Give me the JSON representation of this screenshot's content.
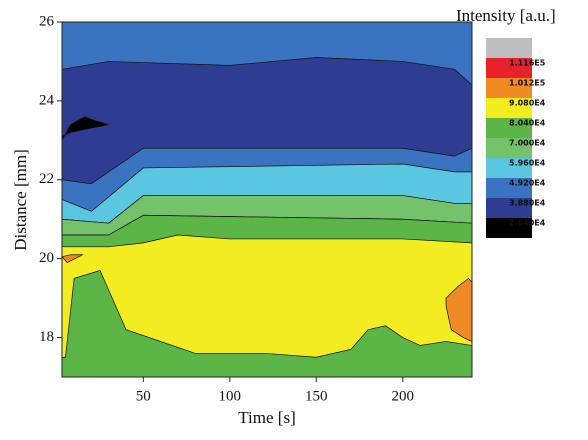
{
  "chart_data": {
    "type": "contour",
    "x_label": "Time [s]",
    "y_label": "Distance [mm]",
    "colorbar_title": "Intensity [a.u.]",
    "xlim": [
      3,
      240
    ],
    "ylim": [
      17,
      26
    ],
    "xticks": [
      50,
      100,
      150,
      200
    ],
    "yticks": [
      18,
      20,
      22,
      24,
      26
    ],
    "colorbar_top_color": "#bdbdbd",
    "levels": [
      {
        "value": 111600,
        "label": "1.116E5",
        "color": "#e8222a"
      },
      {
        "value": 101200,
        "label": "1.012E5",
        "color": "#f08a24"
      },
      {
        "value": 90800,
        "label": "9.080E4",
        "color": "#f3ec20"
      },
      {
        "value": 80400,
        "label": "8.040E4",
        "color": "#5cb547"
      },
      {
        "value": 70000,
        "label": "7.000E4",
        "color": "#74c26a"
      },
      {
        "value": 59600,
        "label": "5.960E4",
        "color": "#5bc6df"
      },
      {
        "value": 49200,
        "label": "4.920E4",
        "color": "#3a73c0"
      },
      {
        "value": 38800,
        "label": "3.880E4",
        "color": "#2e3d92"
      },
      {
        "value": 28400,
        "label": "2.840E4",
        "color": "#000000"
      }
    ],
    "regions": [
      {
        "level": 49200,
        "points": [
          [
            3,
            26
          ],
          [
            240,
            26
          ],
          [
            240,
            17
          ],
          [
            3,
            17
          ]
        ]
      },
      {
        "level": 38800,
        "points": [
          [
            3,
            24.8
          ],
          [
            30,
            25
          ],
          [
            100,
            24.9
          ],
          [
            150,
            25.1
          ],
          [
            200,
            25
          ],
          [
            230,
            24.8
          ],
          [
            240,
            24.4
          ],
          [
            240,
            22.8
          ],
          [
            230,
            22.6
          ],
          [
            200,
            22.8
          ],
          [
            150,
            22.8
          ],
          [
            50,
            22.8
          ],
          [
            20,
            21.9
          ],
          [
            3,
            22.0
          ]
        ]
      },
      {
        "level": 28400,
        "points": [
          [
            3,
            23.0
          ],
          [
            8,
            23.4
          ],
          [
            16,
            23.6
          ],
          [
            22,
            23.5
          ],
          [
            30,
            23.4
          ],
          [
            8,
            23.2
          ],
          [
            3,
            23.1
          ]
        ]
      },
      {
        "level": 59600,
        "points": [
          [
            3,
            21.5
          ],
          [
            20,
            21.2
          ],
          [
            50,
            22.3
          ],
          [
            200,
            22.4
          ],
          [
            230,
            22.2
          ],
          [
            240,
            22.2
          ],
          [
            240,
            21.4
          ],
          [
            230,
            21.4
          ],
          [
            200,
            21.6
          ],
          [
            50,
            21.6
          ],
          [
            30,
            20.9
          ],
          [
            3,
            21.0
          ]
        ]
      },
      {
        "level": 70000,
        "points": [
          [
            3,
            21.0
          ],
          [
            30,
            20.9
          ],
          [
            50,
            21.6
          ],
          [
            200,
            21.6
          ],
          [
            230,
            21.4
          ],
          [
            240,
            21.4
          ],
          [
            240,
            20.9
          ],
          [
            200,
            21.0
          ],
          [
            50,
            21.1
          ],
          [
            30,
            20.6
          ],
          [
            3,
            20.6
          ]
        ]
      },
      {
        "level": 80400,
        "points": [
          [
            3,
            20.6
          ],
          [
            30,
            20.6
          ],
          [
            50,
            21.1
          ],
          [
            200,
            21.0
          ],
          [
            240,
            20.9
          ],
          [
            240,
            17
          ],
          [
            3,
            17
          ]
        ]
      },
      {
        "level": 90800,
        "points": [
          [
            3,
            20.3
          ],
          [
            30,
            20.3
          ],
          [
            50,
            20.4
          ],
          [
            70,
            20.6
          ],
          [
            100,
            20.5
          ],
          [
            150,
            20.5
          ],
          [
            200,
            20.5
          ],
          [
            240,
            20.4
          ],
          [
            240,
            17.8
          ],
          [
            225,
            17.9
          ],
          [
            210,
            17.8
          ],
          [
            200,
            18.0
          ],
          [
            190,
            18.3
          ],
          [
            180,
            18.2
          ],
          [
            170,
            17.7
          ],
          [
            150,
            17.5
          ],
          [
            120,
            17.6
          ],
          [
            100,
            17.6
          ],
          [
            80,
            17.6
          ],
          [
            60,
            17.9
          ],
          [
            40,
            18.2
          ],
          [
            25,
            19.7
          ],
          [
            10,
            19.5
          ],
          [
            5,
            17.5
          ],
          [
            3,
            17.5
          ]
        ]
      },
      {
        "level": 101200,
        "points": [
          [
            3,
            20.05
          ],
          [
            8,
            20.1
          ],
          [
            15,
            20.1
          ],
          [
            6,
            19.9
          ]
        ]
      },
      {
        "level": 101200,
        "points": [
          [
            225,
            19.0
          ],
          [
            232,
            19.3
          ],
          [
            238,
            19.5
          ],
          [
            240,
            19.4
          ],
          [
            240,
            17.9
          ],
          [
            235,
            18.0
          ],
          [
            228,
            18.2
          ],
          [
            225,
            18.8
          ]
        ]
      }
    ]
  }
}
